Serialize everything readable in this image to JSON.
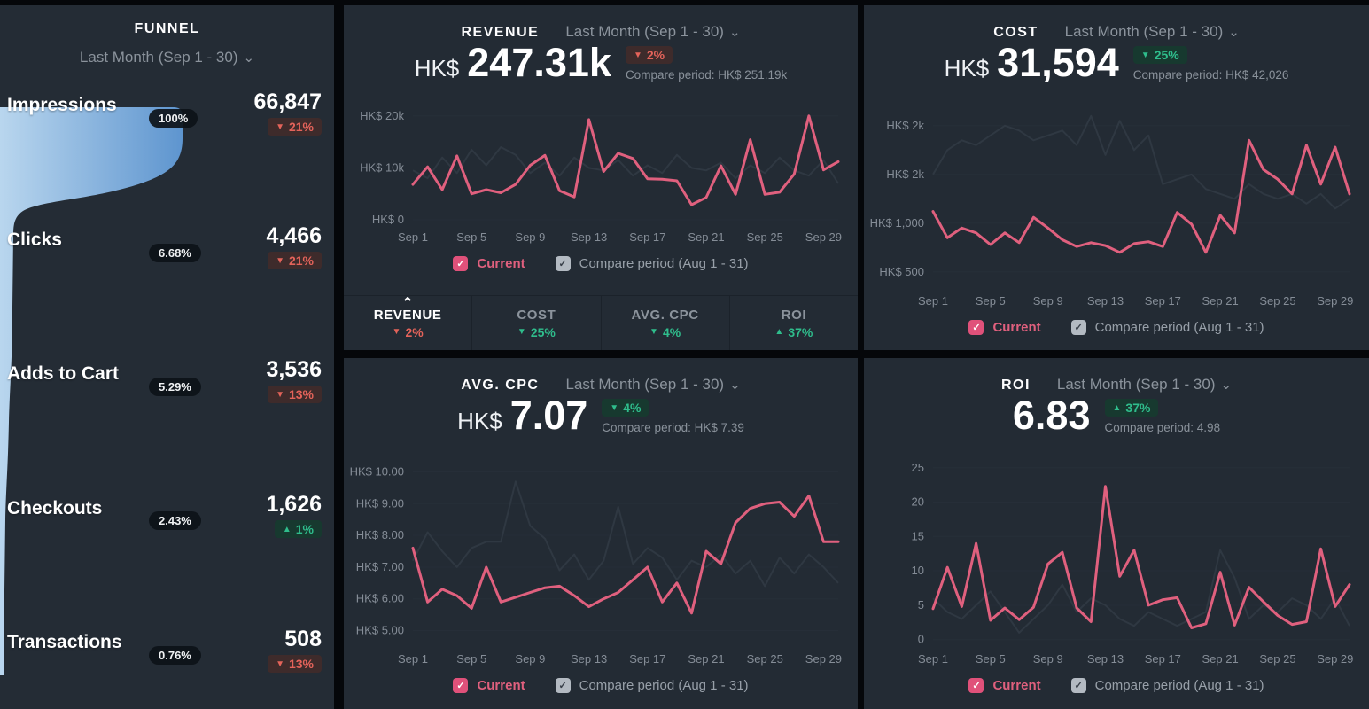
{
  "icons": {
    "chevron_down": "⌄",
    "chevron_up": "⌃",
    "check": "✓"
  },
  "legend": {
    "current": "Current",
    "compare": "Compare period (Aug 1 - 31)"
  },
  "funnel": {
    "title": "FUNNEL",
    "period": "Last Month (Sep 1 - 30)",
    "stages": [
      {
        "label": "Impressions",
        "value": "66,847",
        "rate": "100%",
        "arrow": "▼",
        "delta": "21%",
        "tone": "red"
      },
      {
        "label": "Clicks",
        "value": "4,466",
        "rate": "6.68%",
        "arrow": "▼",
        "delta": "21%",
        "tone": "red"
      },
      {
        "label": "Adds to Cart",
        "value": "3,536",
        "rate": "5.29%",
        "arrow": "▼",
        "delta": "13%",
        "tone": "red"
      },
      {
        "label": "Checkouts",
        "value": "1,626",
        "rate": "2.43%",
        "arrow": "▲",
        "delta": "1%",
        "tone": "green"
      },
      {
        "label": "Transactions",
        "value": "508",
        "rate": "0.76%",
        "arrow": "▼",
        "delta": "13%",
        "tone": "red"
      }
    ]
  },
  "panels": {
    "revenue": {
      "title": "REVENUE",
      "period": "Last Month (Sep 1 - 30)",
      "prefix": "HK$",
      "value": "247.31k",
      "arrow": "▼",
      "delta": "2%",
      "tone": "red",
      "compare": "Compare period: HK$ 251.19k"
    },
    "cost": {
      "title": "COST",
      "period": "Last Month (Sep 1 - 30)",
      "prefix": "HK$",
      "value": "31,594",
      "arrow": "▼",
      "delta": "25%",
      "tone": "green",
      "compare": "Compare period: HK$ 42,026"
    },
    "cpc": {
      "title": "AVG. CPC",
      "period": "Last Month (Sep 1 - 30)",
      "prefix": "HK$",
      "value": "7.07",
      "arrow": "▼",
      "delta": "4%",
      "tone": "green",
      "compare": "Compare period: HK$ 7.39"
    },
    "roi": {
      "title": "ROI",
      "period": "Last Month (Sep 1 - 30)",
      "prefix": "",
      "value": "6.83",
      "arrow": "▲",
      "delta": "37%",
      "tone": "green",
      "compare": "Compare period: 4.98"
    }
  },
  "tabs": [
    {
      "label": "REVENUE",
      "arrow": "▼",
      "delta": "2%",
      "tone": "red",
      "active": true
    },
    {
      "label": "COST",
      "arrow": "▼",
      "delta": "25%",
      "tone": "green",
      "active": false
    },
    {
      "label": "AVG. CPC",
      "arrow": "▼",
      "delta": "4%",
      "tone": "green",
      "active": false
    },
    {
      "label": "ROI",
      "arrow": "▲",
      "delta": "37%",
      "tone": "green",
      "active": false
    }
  ],
  "colors": {
    "accent_pink": "#e0607e",
    "compare_line": "#2f3842",
    "panel_bg": "#232b34",
    "red": "#e4635a",
    "green": "#2fbd8c",
    "funnel_light": "#aecfeb",
    "funnel_dark": "#5e95cf"
  },
  "chart_data": [
    {
      "type": "line",
      "metric": "REVENUE",
      "days": 30,
      "x_tick_labels": [
        "Sep 1",
        "Sep 5",
        "Sep 9",
        "Sep 13",
        "Sep 17",
        "Sep 21",
        "Sep 25",
        "Sep 29"
      ],
      "x_tick_days": [
        0,
        4,
        8,
        12,
        16,
        20,
        24,
        28
      ],
      "y_ticks": [
        {
          "label": "HK$ 20k",
          "value": 20000
        },
        {
          "label": "HK$ 10k",
          "value": 10000
        },
        {
          "label": "HK$ 0",
          "value": 0
        }
      ],
      "ylim": [
        0,
        21500
      ],
      "series": [
        {
          "name": "Current",
          "values": [
            6800,
            10200,
            5800,
            12300,
            5000,
            5800,
            5200,
            6800,
            10500,
            12400,
            5600,
            4400,
            19300,
            9300,
            12800,
            11800,
            7900,
            7800,
            7500,
            2900,
            4300,
            10400,
            4900,
            15400,
            4900,
            5300,
            8800,
            20000,
            9600,
            11200
          ]
        },
        {
          "name": "Compare period (Aug 1 - 31)",
          "values": [
            9500,
            8000,
            12000,
            9000,
            13500,
            10500,
            14000,
            12500,
            9000,
            11000,
            8500,
            12000,
            10000,
            9500,
            11500,
            8500,
            10500,
            9000,
            12500,
            10000,
            9500,
            11000,
            8000,
            10500,
            9000,
            12000,
            9500,
            8500,
            11500,
            7000
          ]
        }
      ]
    },
    {
      "type": "line",
      "metric": "COST",
      "days": 30,
      "x_tick_labels": [
        "Sep 1",
        "Sep 5",
        "Sep 9",
        "Sep 13",
        "Sep 17",
        "Sep 21",
        "Sep 25",
        "Sep 29"
      ],
      "x_tick_days": [
        0,
        4,
        8,
        12,
        16,
        20,
        24,
        28
      ],
      "y_ticks": [
        {
          "label": "HK$ 2k",
          "value": 2000
        },
        {
          "label": "HK$ 2k",
          "value": 1500
        },
        {
          "label": "HK$ 1,000",
          "value": 1000
        },
        {
          "label": "HK$ 500",
          "value": 500
        }
      ],
      "ylim": [
        380,
        2180
      ],
      "series": [
        {
          "name": "Current",
          "values": [
            1120,
            850,
            950,
            900,
            780,
            900,
            800,
            1060,
            950,
            830,
            760,
            800,
            770,
            700,
            790,
            810,
            760,
            1110,
            990,
            700,
            1080,
            900,
            1850,
            1550,
            1450,
            1300,
            1800,
            1400,
            1780,
            1300
          ]
        },
        {
          "name": "Compare period (Aug 1 - 31)",
          "values": [
            1500,
            1750,
            1850,
            1800,
            1900,
            2000,
            1950,
            1850,
            1900,
            1950,
            1800,
            2100,
            1700,
            2050,
            1750,
            1900,
            1400,
            1450,
            1500,
            1350,
            1300,
            1250,
            1400,
            1300,
            1250,
            1300,
            1200,
            1300,
            1150,
            1250
          ]
        }
      ]
    },
    {
      "type": "line",
      "metric": "AVG. CPC",
      "days": 30,
      "x_tick_labels": [
        "Sep 1",
        "Sep 5",
        "Sep 9",
        "Sep 13",
        "Sep 17",
        "Sep 21",
        "Sep 25",
        "Sep 29"
      ],
      "x_tick_days": [
        0,
        4,
        8,
        12,
        16,
        20,
        24,
        28
      ],
      "y_ticks": [
        {
          "label": "HK$ 10.00",
          "value": 10
        },
        {
          "label": "HK$ 9.00",
          "value": 9
        },
        {
          "label": "HK$ 8.00",
          "value": 8
        },
        {
          "label": "HK$ 7.00",
          "value": 7
        },
        {
          "label": "HK$ 6.00",
          "value": 6
        },
        {
          "label": "HK$ 5.00",
          "value": 5
        }
      ],
      "ylim": [
        4.65,
        10.35
      ],
      "series": [
        {
          "name": "Current",
          "values": [
            7.6,
            5.9,
            6.3,
            6.1,
            5.7,
            7.0,
            5.9,
            6.05,
            6.2,
            6.35,
            6.4,
            6.1,
            5.75,
            6.0,
            6.2,
            6.6,
            7.0,
            5.9,
            6.5,
            5.55,
            7.5,
            7.1,
            8.4,
            8.85,
            9.0,
            9.05,
            8.6,
            9.25,
            7.8,
            7.8
          ]
        },
        {
          "name": "Compare period (Aug 1 - 31)",
          "values": [
            7.2,
            8.1,
            7.5,
            7.0,
            7.6,
            7.8,
            7.8,
            9.7,
            8.3,
            7.9,
            6.9,
            7.4,
            6.6,
            7.2,
            8.9,
            7.1,
            7.6,
            7.3,
            6.6,
            7.2,
            7.0,
            7.4,
            6.8,
            7.2,
            6.4,
            7.3,
            6.8,
            7.4,
            7.0,
            6.5
          ]
        }
      ]
    },
    {
      "type": "line",
      "metric": "ROI",
      "days": 30,
      "x_tick_labels": [
        "Sep 1",
        "Sep 5",
        "Sep 9",
        "Sep 13",
        "Sep 17",
        "Sep 21",
        "Sep 25",
        "Sep 29"
      ],
      "x_tick_days": [
        0,
        4,
        8,
        12,
        16,
        20,
        24,
        28
      ],
      "y_ticks": [
        {
          "label": "25",
          "value": 25
        },
        {
          "label": "20",
          "value": 20
        },
        {
          "label": "15",
          "value": 15
        },
        {
          "label": "10",
          "value": 10
        },
        {
          "label": "5",
          "value": 5
        },
        {
          "label": "0",
          "value": 0
        }
      ],
      "ylim": [
        -0.3,
        26
      ],
      "series": [
        {
          "name": "Current",
          "values": [
            4.5,
            10.5,
            4.8,
            14,
            2.8,
            4.6,
            2.9,
            4.7,
            11,
            12.7,
            4.6,
            2.6,
            22.3,
            9.2,
            13,
            5,
            5.8,
            6.1,
            1.7,
            2.3,
            9.8,
            2.1,
            7.6,
            5.5,
            3.5,
            2.2,
            2.6,
            13.2,
            4.8,
            8
          ]
        },
        {
          "name": "Compare period (Aug 1 - 31)",
          "values": [
            6,
            4,
            3,
            5,
            7,
            4,
            1,
            3,
            5,
            8,
            4,
            6,
            5,
            3,
            2,
            4,
            3,
            2,
            3,
            4,
            13,
            9,
            3,
            5,
            4,
            6,
            5,
            3,
            6,
            2
          ]
        }
      ]
    }
  ]
}
